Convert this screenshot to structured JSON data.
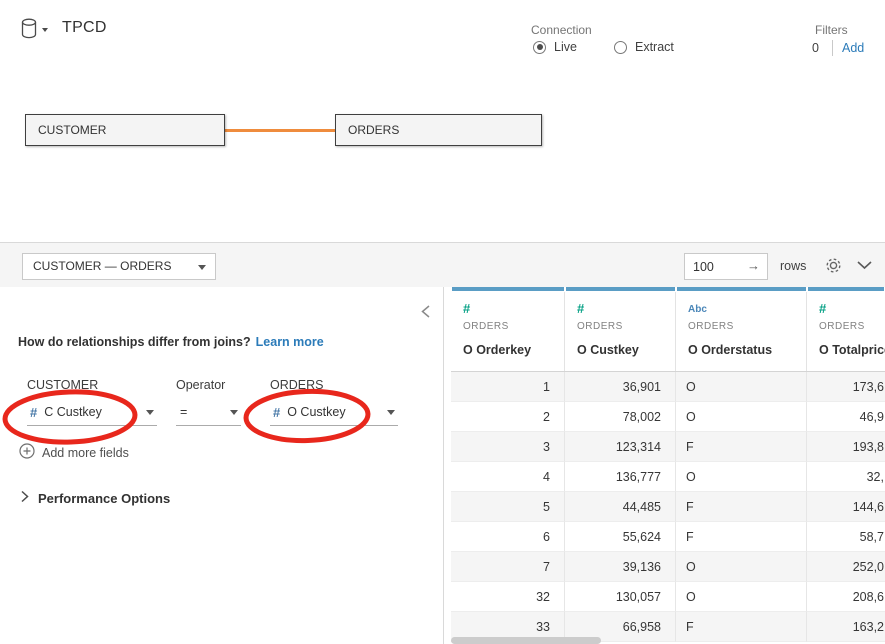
{
  "header": {
    "datasource_title": "TPCD",
    "connection": {
      "label": "Connection",
      "options": [
        {
          "label": "Live",
          "selected": true
        },
        {
          "label": "Extract",
          "selected": false
        }
      ]
    },
    "filters": {
      "label": "Filters",
      "count": "0",
      "add_label": "Add"
    }
  },
  "canvas": {
    "tables": [
      {
        "name": "CUSTOMER"
      },
      {
        "name": "ORDERS"
      }
    ]
  },
  "toolbar": {
    "relationship_selector": "CUSTOMER  —  ORDERS",
    "rows_input_value": "100",
    "rows_go_icon": "→",
    "rows_label": "rows"
  },
  "relationship_panel": {
    "question": "How do relationships differ from joins?",
    "learn_more_label": "Learn more",
    "left_table_label": "CUSTOMER",
    "operator_label": "Operator",
    "right_table_label": "ORDERS",
    "left_field": "C Custkey",
    "left_field_icon": "#",
    "operator_value": "=",
    "right_field": "O Custkey",
    "right_field_icon": "#",
    "add_more_fields_label": "Add more fields",
    "performance_options_label": "Performance Options"
  },
  "data_grid": {
    "columns": [
      {
        "type": "number",
        "icon": "#",
        "table": "ORDERS",
        "field": "O Orderkey"
      },
      {
        "type": "number",
        "icon": "#",
        "table": "ORDERS",
        "field": "O Custkey"
      },
      {
        "type": "string",
        "icon": "Abc",
        "table": "ORDERS",
        "field": "O Orderstatus"
      },
      {
        "type": "number",
        "icon": "#",
        "table": "ORDERS",
        "field": "O Totalprice"
      }
    ],
    "rows": [
      [
        "1",
        "36,901",
        "O",
        "173,6"
      ],
      [
        "2",
        "78,002",
        "O",
        "46,9"
      ],
      [
        "3",
        "123,314",
        "F",
        "193,8"
      ],
      [
        "4",
        "136,777",
        "O",
        "32,"
      ],
      [
        "5",
        "44,485",
        "F",
        "144,6"
      ],
      [
        "6",
        "55,624",
        "F",
        "58,7"
      ],
      [
        "7",
        "39,136",
        "O",
        "252,0"
      ],
      [
        "32",
        "130,057",
        "O",
        "208,6"
      ],
      [
        "33",
        "66,958",
        "F",
        "163,2"
      ]
    ]
  },
  "colors": {
    "grid_header_strip": "#5a9dc5",
    "number_icon_green": "#09a287",
    "string_icon_blue": "#4a86b8",
    "field_icon_blue": "#4879a8",
    "link_blue": "#2b7bb9",
    "connector_orange": "#ef8c3d",
    "annotation_red": "#e8271c"
  }
}
